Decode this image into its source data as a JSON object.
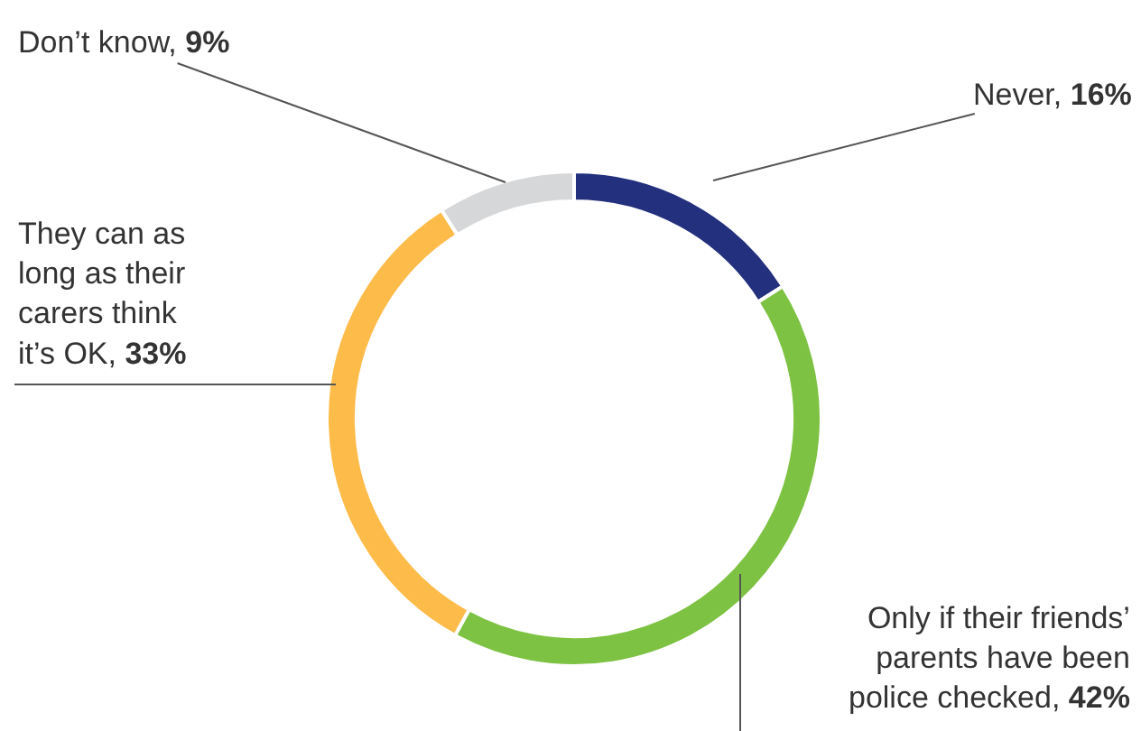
{
  "chart_data": {
    "type": "donut",
    "categories": [
      "Never, 16%",
      "Only if their friends’\nparents have been\npolice checked, 42%",
      "They can as\nlong as their\ncarers think\nit’s OK, 33%",
      "Don’t know, 9%"
    ],
    "values": [
      16,
      42,
      33,
      9
    ],
    "colors": [
      "#23307e",
      "#7dc242",
      "#fdbb4a",
      "#d5d7d9"
    ],
    "legend": false
  }
}
